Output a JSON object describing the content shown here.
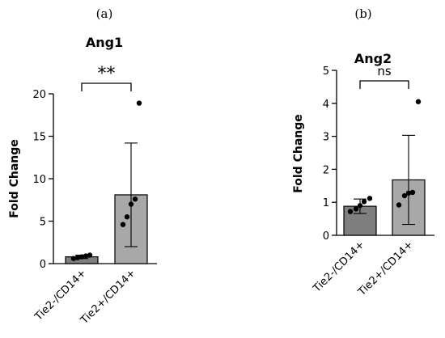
{
  "chart_data": [
    {
      "panel": "(a)",
      "type": "bar",
      "title": "Ang1",
      "ylabel": "Fold Change",
      "ylim": [
        0,
        20
      ],
      "yticks": [
        "0",
        "5",
        "10",
        "15",
        "20"
      ],
      "categories": [
        "Tie2-/CD14+",
        "Tie2+/CD14+"
      ],
      "values": [
        0.8,
        8.1
      ],
      "error_sd": [
        0.2,
        6.1
      ],
      "points": [
        [
          0.6,
          0.7,
          0.8,
          0.9,
          1.0
        ],
        [
          4.6,
          5.5,
          7.0,
          7.6,
          18.9
        ]
      ],
      "bar_colors": [
        "#7f7f7f",
        "#a8a8a8"
      ],
      "significance": "**"
    },
    {
      "panel": "(b)",
      "type": "bar",
      "title": "Ang2",
      "ylabel": "Fold Change",
      "ylim": [
        0,
        5
      ],
      "yticks": [
        "0",
        "1",
        "2",
        "3",
        "4",
        "5"
      ],
      "categories": [
        "Tie2-/CD14+",
        "Tie2+/CD14+"
      ],
      "values": [
        0.88,
        1.68
      ],
      "error_sd": [
        0.22,
        1.35
      ],
      "points": [
        [
          0.72,
          0.8,
          0.9,
          1.02,
          1.12
        ],
        [
          0.92,
          1.2,
          1.28,
          1.3,
          4.05
        ]
      ],
      "bar_colors": [
        "#7f7f7f",
        "#a8a8a8"
      ],
      "significance": "ns"
    }
  ]
}
